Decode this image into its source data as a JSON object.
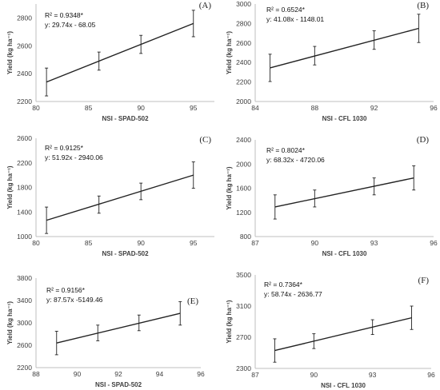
{
  "chart_data": [
    {
      "panel": "(A)",
      "type": "line",
      "xlabel": "NSI - SPAD-502",
      "ylabel": "Yield (kg ha⁻¹)",
      "xlim": [
        80,
        97
      ],
      "ylim": [
        2200,
        2900
      ],
      "xticks": [
        80,
        85,
        90,
        95
      ],
      "yticks": [
        2200,
        2400,
        2600,
        2800
      ],
      "x": [
        81,
        86,
        90,
        95
      ],
      "y": [
        2340,
        2490,
        2610,
        2760
      ],
      "errors": [
        100,
        65,
        65,
        95
      ],
      "annotations": [
        "R² = 0.9348*",
        "y: 29.74x - 68.05"
      ]
    },
    {
      "panel": "(B)",
      "type": "line",
      "xlabel": "NSI - CFL 1030",
      "ylabel": "Yield (kg ha⁻¹)",
      "xlim": [
        84,
        96
      ],
      "ylim": [
        2000,
        3000
      ],
      "xticks": [
        84,
        88,
        92,
        96
      ],
      "yticks": [
        2000,
        2200,
        2400,
        2600,
        2800,
        3000
      ],
      "x": [
        85,
        88,
        92,
        95
      ],
      "y": [
        2345,
        2470,
        2630,
        2750
      ],
      "errors": [
        140,
        95,
        95,
        145
      ],
      "annotations": [
        "R² = 0.6524*",
        "y: 41.08x - 1148.01"
      ]
    },
    {
      "panel": "(C)",
      "type": "line",
      "xlabel": "NSI - SPAD-502",
      "ylabel": "Yield (kg ha⁻¹)",
      "xlim": [
        80,
        97
      ],
      "ylim": [
        1000,
        2600
      ],
      "xticks": [
        80,
        85,
        90,
        95
      ],
      "yticks": [
        1000,
        1400,
        1800,
        2200,
        2600
      ],
      "x": [
        81,
        86,
        90,
        95
      ],
      "y": [
        1265,
        1520,
        1735,
        2000
      ],
      "errors": [
        215,
        140,
        135,
        215
      ],
      "annotations": [
        "R² = 0.9125*",
        "y: 51.92x - 2940.06"
      ]
    },
    {
      "panel": "(D)",
      "type": "line",
      "xlabel": "NSI - CFL 1030",
      "ylabel": "Yield (kg ha⁻¹)",
      "xlim": [
        87,
        96
      ],
      "ylim": [
        800,
        2400
      ],
      "xticks": [
        87,
        90,
        93,
        96
      ],
      "yticks": [
        800,
        1200,
        1600,
        2000,
        2400
      ],
      "x": [
        88,
        90,
        93,
        95
      ],
      "y": [
        1290,
        1430,
        1630,
        1770
      ],
      "errors": [
        200,
        140,
        140,
        200
      ],
      "annotations": [
        "R² =  0.8024*",
        "y: 68.32x - 4720.06"
      ]
    },
    {
      "panel": "(E)",
      "type": "line",
      "xlabel": "NSI - SPAD-502",
      "ylabel": "Yield (kg ha⁻¹)",
      "xlim": [
        88,
        96
      ],
      "ylim": [
        2200,
        3800
      ],
      "xticks": [
        88,
        90,
        92,
        94,
        96
      ],
      "yticks": [
        2200,
        2600,
        3000,
        3400,
        3800
      ],
      "x": [
        89,
        91,
        93,
        95
      ],
      "y": [
        2640,
        2820,
        3000,
        3170
      ],
      "errors": [
        210,
        140,
        140,
        210
      ],
      "annotations": [
        "R² = 0.9156*",
        "y: 87.57x -5149.46"
      ]
    },
    {
      "panel": "(F)",
      "type": "line",
      "xlabel": "NSI - CFL 1030",
      "ylabel": "Yield (kg ha⁻¹)",
      "xlim": [
        87,
        96
      ],
      "ylim": [
        2300,
        3500
      ],
      "xticks": [
        87,
        90,
        93,
        96
      ],
      "yticks": [
        2300,
        2700,
        3100,
        3500
      ],
      "x": [
        88,
        90,
        93,
        95
      ],
      "y": [
        2530,
        2650,
        2830,
        2950
      ],
      "errors": [
        150,
        95,
        95,
        150
      ],
      "annotations": [
        "R² = 0.7364*",
        "y: 58.74x - 2636.77"
      ]
    }
  ],
  "colors": {
    "line": "#222222",
    "axis": "#bfbfbf",
    "text": "#404040"
  }
}
